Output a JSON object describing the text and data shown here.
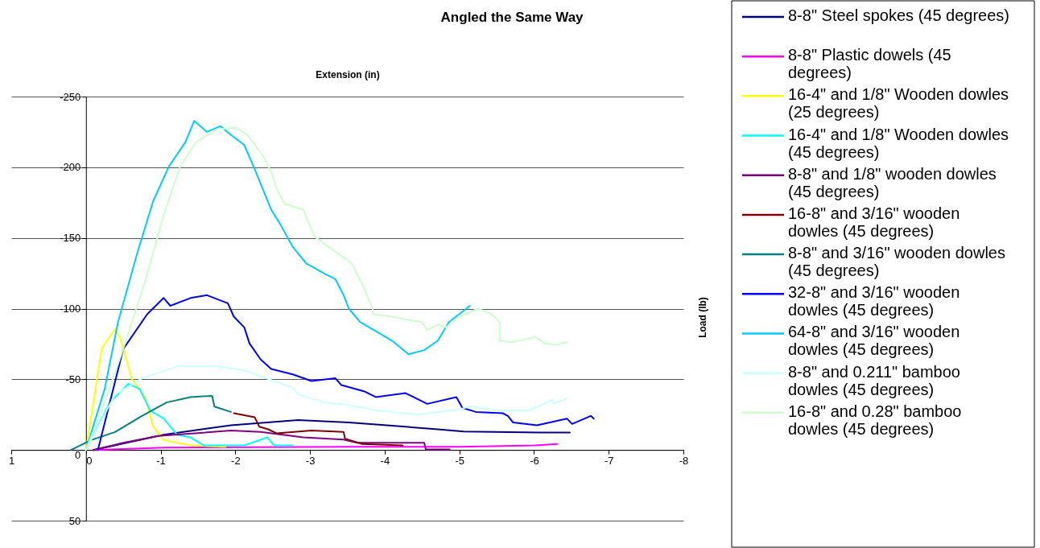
{
  "chart_data": {
    "type": "line",
    "title": "Angled the Same Way",
    "xlabel": "Extension (in)",
    "ylabel": "Load (lb)",
    "xlim": [
      1,
      -8
    ],
    "ylim": [
      50,
      -250
    ],
    "xticks": [
      1,
      0,
      -1,
      -2,
      -3,
      -4,
      -5,
      -6,
      -7,
      -8
    ],
    "yticks": [
      -250,
      -200,
      -150,
      -100,
      -50,
      0,
      50
    ],
    "grid": "y",
    "legend": "right",
    "line_style": "solid",
    "series": [
      {
        "name": "8-8\" Steel spokes (45 degrees)",
        "color": "#000080",
        "x": [
          -0.1,
          -1.04,
          -1.94,
          -2.84,
          -3.52,
          -4.03,
          -4.71,
          -5.06,
          -6.08,
          -6.48
        ],
        "values": [
          0,
          -10.8,
          -17.5,
          -21.2,
          -19.4,
          -17.5,
          -14.6,
          -13.1,
          -12.3,
          -12.3
        ]
      },
      {
        "name": "8-8\" Plastic dowels (45 degrees)",
        "color": "#ff00ff",
        "x": [
          -0.1,
          -1.04,
          -3.52,
          -5.0,
          -6.01,
          -6.31
        ],
        "values": [
          0,
          -1.7,
          -2.3,
          -2.3,
          -3.2,
          -4.2
        ]
      },
      {
        "name": "16-4\" and 1/8\" Wooden dowles (25 degrees)",
        "color": "#ffff00",
        "x": [
          0,
          -0.1,
          -0.21,
          -0.39,
          -0.46,
          -0.61,
          -0.79,
          -0.9,
          -1.04,
          -1.4,
          -1.87
        ],
        "values": [
          0,
          -33.6,
          -71.5,
          -85.8,
          -79.1,
          -50.7,
          -37.4,
          -16.5,
          -7,
          -3.2,
          -2.3
        ]
      },
      {
        "name": "16-4\" and 1/8\" Wooden dowles (45 degrees)",
        "color": "#00ffff",
        "x": [
          0,
          -0.32,
          -0.57,
          -0.72,
          -0.86,
          -1.04,
          -1.22,
          -1.4,
          -1.58,
          -2.12,
          -2.43,
          -2.52,
          -2.77
        ],
        "values": [
          0,
          -33.6,
          -46.9,
          -43,
          -27.9,
          -22.2,
          -10.8,
          -8.9,
          -3.2,
          -3.2,
          -8.9,
          -3.2,
          -3.2
        ]
      },
      {
        "name": "8-8\" and 1/8\" wooden dowles (45 degrees)",
        "color": "#800080",
        "x": [
          -0.1,
          -0.5,
          -0.97,
          -1.94,
          -2.34,
          -2.91,
          -3.45,
          -3.63,
          -4.53,
          -4.55,
          -4.87
        ],
        "values": [
          0,
          -5.1,
          -9.9,
          -13.7,
          -12.7,
          -8.9,
          -7.4,
          -5.1,
          -5.1,
          -0.4,
          -0.4
        ]
      },
      {
        "name": "16-8\" and 3/16\" wooden dowles (45 degrees)",
        "color": "#800000",
        "x": [
          -1.98,
          -2.26,
          -2.32,
          -2.44,
          -2.55,
          -3.02,
          -3.45,
          -3.47,
          -3.7,
          -4.24
        ],
        "values": [
          -26,
          -23.1,
          -16.5,
          -14.6,
          -11.8,
          -13.7,
          -12.7,
          -8,
          -4.2,
          -3.2
        ]
      },
      {
        "name": "8-8\" and 3/16\" wooden dowles (45 degrees)",
        "color": "#008080",
        "x": [
          0.2,
          -0.07,
          -0.39,
          -0.75,
          -1.08,
          -1.4,
          -1.69,
          -1.72,
          -1.94
        ],
        "values": [
          0,
          -7,
          -12.7,
          -24.1,
          -33.6,
          -37.4,
          -38.3,
          -30.7,
          -26.9
        ]
      },
      {
        "name": "32-8\" and 3/16\" wooden dowles (45 degrees)",
        "color": "#0000ff",
        "x": [
          -0.16,
          -0.5,
          -0.82,
          -1.04,
          -1.13,
          -1.4,
          -1.62,
          -1.9,
          -1.98,
          -2.12,
          -2.19,
          -2.34,
          -2.48,
          -2.77,
          -3.02,
          -3.34,
          -3.42,
          -3.74,
          -3.88,
          -4.28,
          -4.57,
          -4.96,
          -5.04,
          -5.22,
          -5.58,
          -5.65,
          -5.72,
          -6.04,
          -6.44,
          -6.51,
          -6.76,
          -6.8
        ],
        "values": [
          0,
          -71.5,
          -96,
          -107.5,
          -102,
          -107.5,
          -109.5,
          -103.8,
          -94.3,
          -86.7,
          -75.3,
          -64,
          -57.3,
          -53.5,
          -48.8,
          -50.7,
          -45.9,
          -41.2,
          -37.4,
          -40.2,
          -32.6,
          -37.4,
          -29.8,
          -26.9,
          -26,
          -24.1,
          -19.4,
          -17.5,
          -22.2,
          -18.4,
          -24.1,
          -22.2
        ]
      },
      {
        "name": "64-8\" and 3/16\" wooden dowles (45 degrees)",
        "color": "#00ccff",
        "x": [
          0,
          -0.25,
          -0.43,
          -0.68,
          -0.9,
          -1.11,
          -1.33,
          -1.45,
          -1.62,
          -1.8,
          -1.94,
          -2.12,
          -2.26,
          -2.48,
          -2.59,
          -2.77,
          -2.95,
          -3.2,
          -3.34,
          -3.45,
          -3.52,
          -3.67,
          -3.92,
          -4.1,
          -4.32,
          -4.53,
          -4.71,
          -4.86,
          -5.0,
          -5.14
        ],
        "values": [
          0,
          -43,
          -90.5,
          -138,
          -176,
          -200.5,
          -217.6,
          -232.8,
          -225,
          -229,
          -223,
          -215.7,
          -198.6,
          -170,
          -160.7,
          -143.6,
          -132,
          -124.6,
          -120.8,
          -109.5,
          -100,
          -90.5,
          -82.9,
          -77.2,
          -67.7,
          -70.6,
          -77.2,
          -90.5,
          -96.2,
          -101.9
        ]
      },
      {
        "name": "8-8\" and 0.211\" bamboo dowles (45 degrees)",
        "color": "#ccffff",
        "x": [
          0,
          -0.39,
          -0.75,
          -1.22,
          -1.76,
          -2.12,
          -2.77,
          -2.84,
          -3.2,
          -3.42,
          -3.92,
          -4.46,
          -5.0,
          -5.14,
          -5.54,
          -5.94,
          -6.24,
          -6.26,
          -6.44
        ],
        "values": [
          0,
          -39.3,
          -50.7,
          -59.2,
          -59.2,
          -56.3,
          -44,
          -39.3,
          -33.6,
          -32.6,
          -27.9,
          -25,
          -28.8,
          -30.7,
          -27.9,
          -27.9,
          -35.5,
          -32.6,
          -36.4
        ]
      },
      {
        "name": "16-8\" and 0.28\" bamboo dowles (45 degrees)",
        "color": "#ccffcc",
        "x": [
          0,
          -0.25,
          -0.5,
          -0.79,
          -1.04,
          -1.26,
          -1.47,
          -1.76,
          -2.01,
          -2.16,
          -2.37,
          -2.48,
          -2.55,
          -2.66,
          -2.91,
          -3.06,
          -3.2,
          -3.56,
          -3.7,
          -3.84,
          -3.84,
          -4.1,
          -4.28,
          -4.5,
          -4.57,
          -4.71,
          -4.82,
          -5.0,
          -5.25,
          -5.43,
          -5.54,
          -5.54,
          -5.72,
          -6.01,
          -6.15,
          -6.3,
          -6.44
        ],
        "values": [
          0,
          -33.6,
          -71.5,
          -119,
          -166,
          -200.5,
          -217.6,
          -227,
          -228,
          -223,
          -208,
          -196.7,
          -185,
          -174,
          -170,
          -151,
          -145.5,
          -132,
          -117,
          -100,
          -96.2,
          -94.3,
          -92.4,
          -90.5,
          -84.8,
          -88.6,
          -86.7,
          -94.3,
          -100,
          -96.2,
          -90.5,
          -77.2,
          -76.3,
          -80,
          -75.3,
          -74.4,
          -76.3
        ]
      }
    ]
  }
}
